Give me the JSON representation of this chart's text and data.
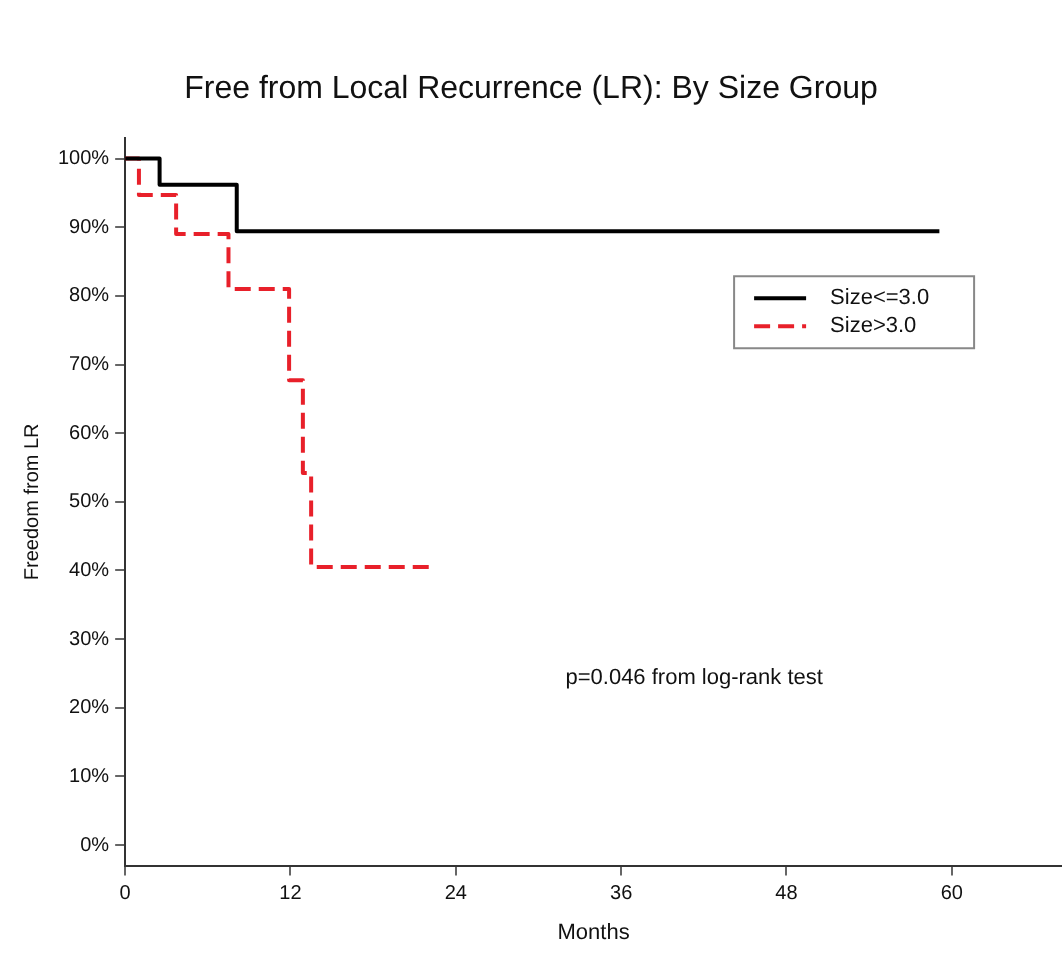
{
  "chart_data": {
    "type": "step",
    "title": "Free from Local Recurrence (LR): By Size Group",
    "xlabel": "Months",
    "ylabel": "Freedom from LR",
    "series": [
      {
        "name": "Size<=3.0",
        "color": "#000000",
        "line_style": "solid",
        "x": [
          0,
          2.5,
          8.1,
          59.1
        ],
        "values": [
          100,
          96.2,
          89.4,
          89.4
        ]
      },
      {
        "name": "Size>3.0",
        "color": "#e8202a",
        "line_style": "dashed",
        "x": [
          0,
          1,
          3.7,
          7.5,
          11.9,
          12.9,
          13.5,
          22.2
        ],
        "values": [
          100,
          94.7,
          89,
          81,
          67.7,
          54.2,
          40.5,
          40.5
        ]
      }
    ],
    "xlim": [
      0,
      68
    ],
    "xticks": [
      0,
      12,
      24,
      36,
      48,
      60
    ],
    "ylim": [
      -3,
      103
    ],
    "yticks": [
      {
        "value": 0,
        "label": "0%"
      },
      {
        "value": 10,
        "label": "10%"
      },
      {
        "value": 20,
        "label": "20%"
      },
      {
        "value": 30,
        "label": "30%"
      },
      {
        "value": 40,
        "label": "40%"
      },
      {
        "value": 50,
        "label": "50%"
      },
      {
        "value": 60,
        "label": "60%"
      },
      {
        "value": 70,
        "label": "70%"
      },
      {
        "value": 80,
        "label": "80%"
      },
      {
        "value": 90,
        "label": "90%"
      },
      {
        "value": 100,
        "label": "100%"
      }
    ],
    "grid": false,
    "legend": "top right",
    "annotations": [
      "p=0.046 from log-rank test"
    ]
  }
}
